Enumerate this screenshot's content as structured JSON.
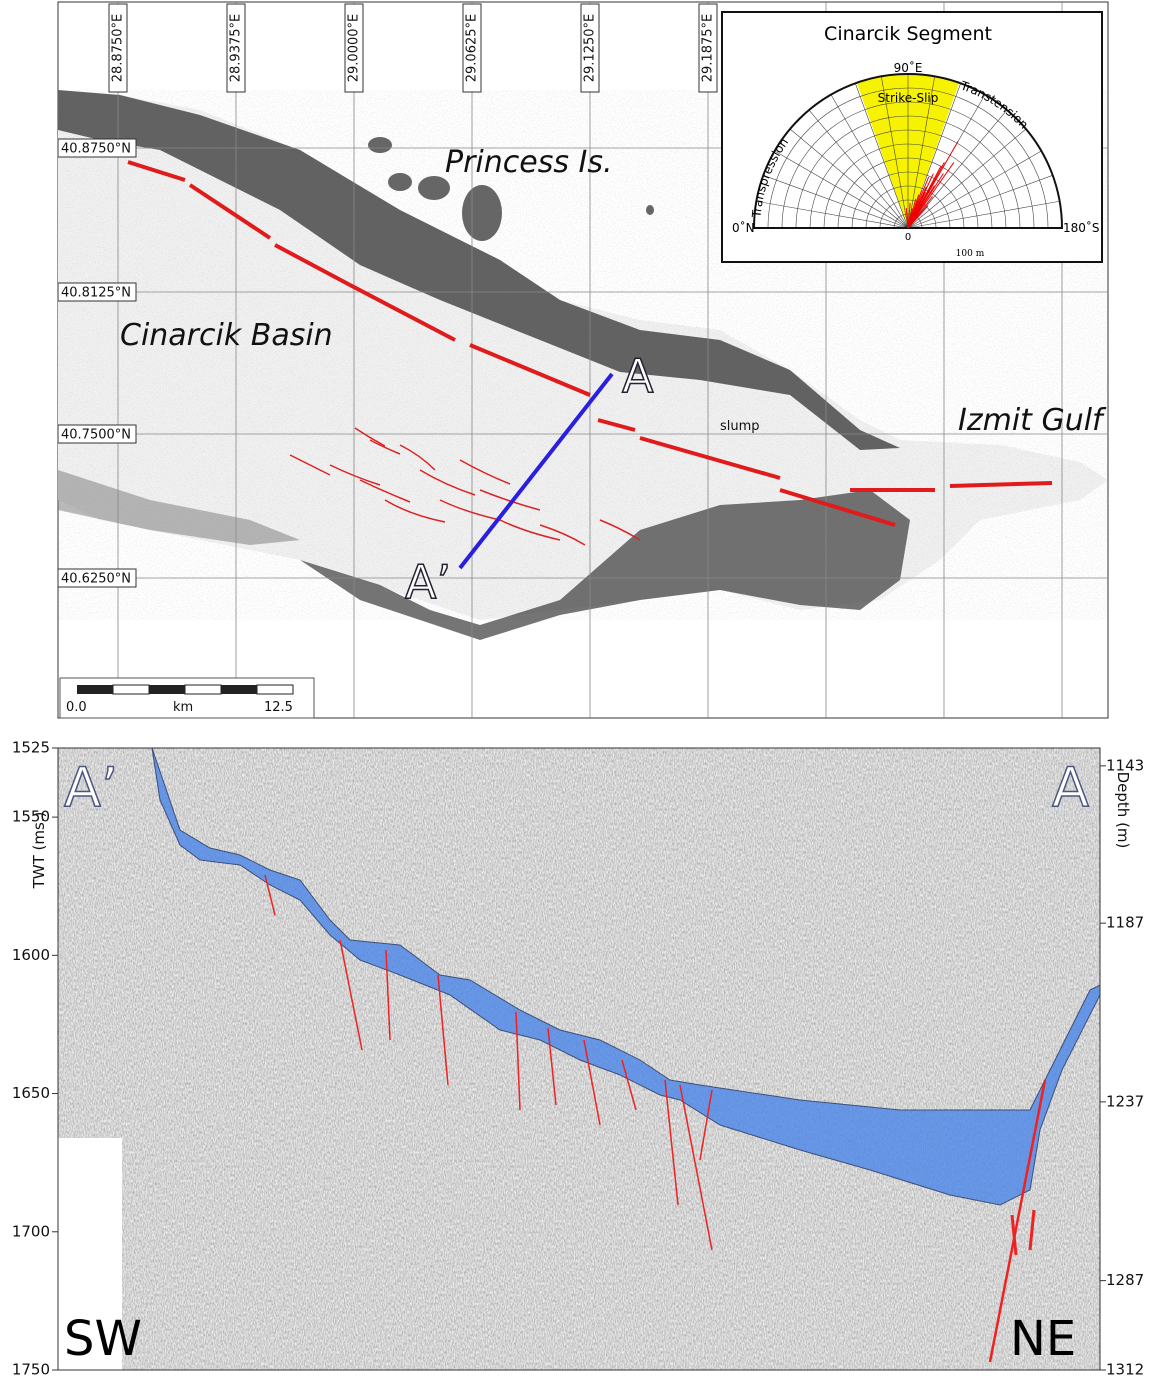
{
  "map": {
    "longitude_labels": [
      "28.8750°E",
      "28.9375°E",
      "29.0000°E",
      "29.0625°E",
      "29.1250°E",
      "29.1875°E"
    ],
    "latitude_labels": [
      "40.8750°N",
      "40.8125°N",
      "40.7500°N",
      "40.6250°N"
    ],
    "place_labels": {
      "islands": "Princess Is.",
      "basin": "Cinarcik Basin",
      "gulf": "Izmit Gulf",
      "slump": "slump"
    },
    "profile_ends": {
      "northeast": "A",
      "southwest": "A’"
    },
    "scale_bar": {
      "start": "0.0",
      "unit": "km",
      "end": "12.5"
    }
  },
  "inset": {
    "title": "Cinarcik Segment",
    "top": "90˚E",
    "left": "0˚N",
    "right": "180˚S",
    "origin": "0",
    "scale": "100 m",
    "wedge": "Strike-Slip",
    "left_arc": "Transpression",
    "right_arc": "Transtension"
  },
  "profile": {
    "left_axis_title": "TWT (ms.)",
    "right_axis_title": "Depth (m)",
    "twt_lim": [
      1525,
      1750
    ],
    "twt_ticks": [
      1525,
      1550,
      1600,
      1650,
      1700,
      1750
    ],
    "depth_lim": [
      1138,
      1312
    ],
    "depth_ticks": [
      1143,
      1187,
      1237,
      1287,
      1312
    ],
    "left_end": "A’",
    "right_end": "A",
    "left_direction": "SW",
    "right_direction": "NE"
  }
}
